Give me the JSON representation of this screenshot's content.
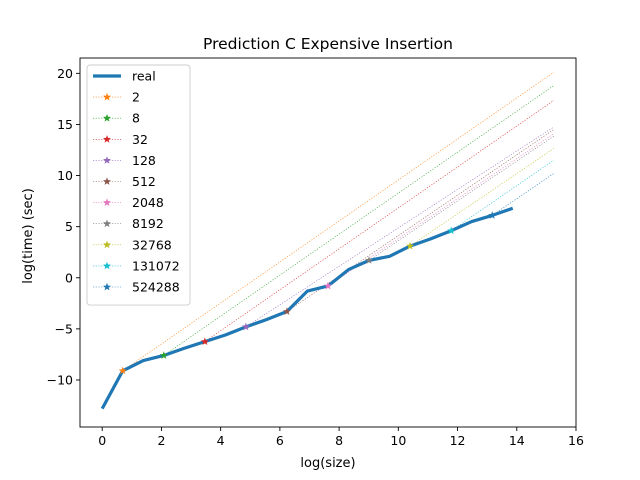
{
  "chart_data": {
    "type": "line",
    "title": "Prediction C Expensive Insertion",
    "xlabel": "log(size)",
    "ylabel": "log(time) (sec)",
    "xlim": [
      -0.75,
      16.0
    ],
    "ylim": [
      -14.6,
      21.5
    ],
    "xticks": [
      0,
      2,
      4,
      6,
      8,
      10,
      12,
      14,
      16
    ],
    "yticks": [
      -10,
      -5,
      0,
      5,
      10,
      15,
      20
    ],
    "grid": false,
    "legend_position": "upper-left",
    "series": [
      {
        "name": "real",
        "color": "#1f77b4",
        "style": "thick-solid",
        "x": [
          0,
          0.693,
          1.386,
          2.079,
          2.773,
          3.466,
          4.159,
          4.852,
          5.545,
          6.238,
          6.931,
          7.625,
          8.318,
          9.011,
          9.704,
          10.397,
          11.09,
          11.784,
          12.477,
          13.17,
          13.863
        ],
        "y": [
          -12.8,
          -9.1,
          -8.1,
          -7.6,
          -6.9,
          -6.25,
          -5.6,
          -4.8,
          -4.1,
          -3.3,
          -1.3,
          -0.8,
          0.8,
          1.7,
          2.1,
          3.1,
          3.8,
          4.6,
          5.5,
          6.1,
          6.8
        ]
      },
      {
        "name": "2",
        "color": "#ff7f0e",
        "x": [
          0.693,
          15.25
        ],
        "y": [
          -9.1,
          20.1
        ]
      },
      {
        "name": "8",
        "color": "#2ca02c",
        "x": [
          2.079,
          15.25
        ],
        "y": [
          -7.6,
          18.8
        ]
      },
      {
        "name": "32",
        "color": "#d62728",
        "x": [
          3.466,
          15.25
        ],
        "y": [
          -6.25,
          17.35
        ]
      },
      {
        "name": "128",
        "color": "#9467bd",
        "x": [
          4.852,
          15.25
        ],
        "y": [
          -4.8,
          14.75
        ]
      },
      {
        "name": "512",
        "color": "#8c564b",
        "x": [
          6.238,
          15.25
        ],
        "y": [
          -3.3,
          14.5
        ]
      },
      {
        "name": "2048",
        "color": "#e377c2",
        "x": [
          7.625,
          15.25
        ],
        "y": [
          -0.8,
          14.1
        ]
      },
      {
        "name": "8192",
        "color": "#7f7f7f",
        "x": [
          9.011,
          15.25
        ],
        "y": [
          1.7,
          13.85
        ]
      },
      {
        "name": "32768",
        "color": "#bcbd22",
        "x": [
          10.397,
          15.25
        ],
        "y": [
          3.1,
          12.65
        ]
      },
      {
        "name": "131072",
        "color": "#17becf",
        "x": [
          11.784,
          15.25
        ],
        "y": [
          4.6,
          11.5
        ]
      },
      {
        "name": "524288",
        "color": "#1f77b4",
        "x": [
          13.17,
          15.25
        ],
        "y": [
          6.1,
          10.2
        ]
      }
    ]
  }
}
